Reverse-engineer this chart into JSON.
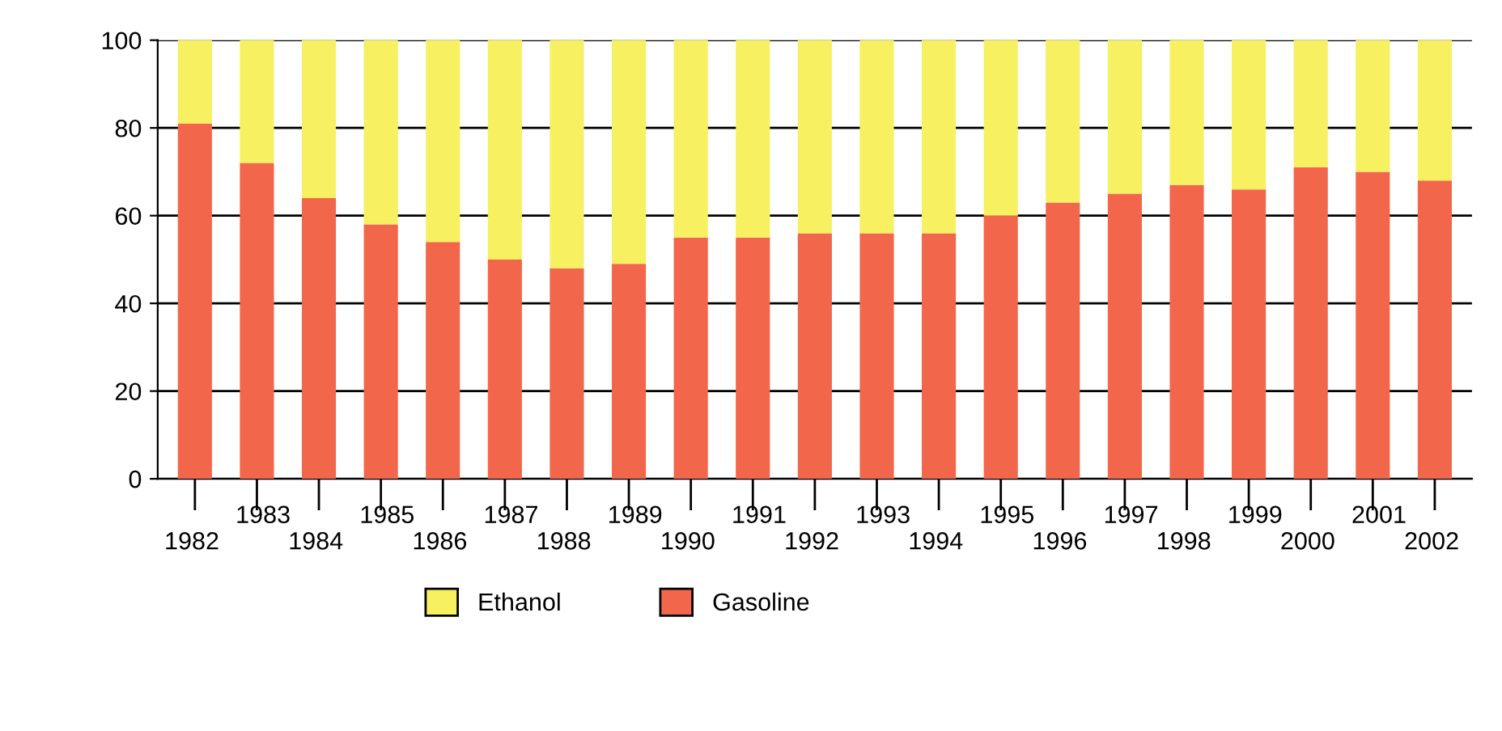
{
  "chart_data": {
    "type": "bar",
    "stacked": true,
    "categories": [
      "1982",
      "1983",
      "1984",
      "1985",
      "1986",
      "1987",
      "1988",
      "1989",
      "1990",
      "1991",
      "1992",
      "1993",
      "1994",
      "1995",
      "1996",
      "1997",
      "1998",
      "1999",
      "2000",
      "2001",
      "2002"
    ],
    "series": [
      {
        "name": "Gasoline",
        "color": "#f2664b",
        "values": [
          81,
          72,
          64,
          58,
          54,
          50,
          48,
          49,
          55,
          55,
          56,
          56,
          56,
          60,
          63,
          65,
          67,
          66,
          71,
          70,
          68
        ]
      },
      {
        "name": "Ethanol",
        "color": "#f7f060",
        "values": [
          19,
          28,
          36,
          42,
          46,
          50,
          52,
          51,
          45,
          45,
          44,
          44,
          44,
          40,
          37,
          35,
          33,
          34,
          29,
          30,
          32
        ]
      }
    ],
    "ylim": [
      0,
      100
    ],
    "yticks": [
      0,
      20,
      40,
      60,
      80,
      100
    ],
    "grid": "y",
    "legend": "bottom"
  }
}
